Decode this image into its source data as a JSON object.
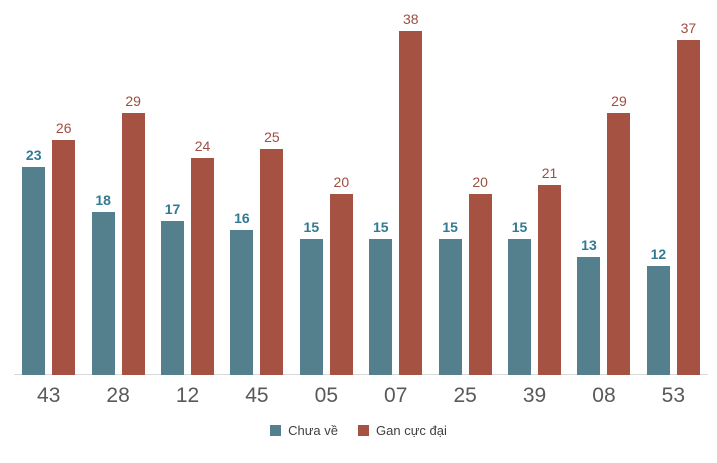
{
  "chart_data": {
    "type": "bar",
    "title": "",
    "xlabel": "",
    "ylabel": "",
    "categories": [
      "43",
      "28",
      "12",
      "45",
      "05",
      "07",
      "25",
      "39",
      "08",
      "53"
    ],
    "series": [
      {
        "name": "Chưa về",
        "color": "#54808D",
        "label_color": "#327A93",
        "values": [
          23,
          18,
          17,
          16,
          15,
          15,
          15,
          15,
          13,
          12
        ]
      },
      {
        "name": "Gan cực đại",
        "color": "#A55242",
        "label_color": "#9E4E3F",
        "values": [
          26,
          29,
          24,
          25,
          20,
          38,
          20,
          21,
          29,
          37
        ]
      }
    ],
    "ylim": [
      0,
      38
    ],
    "grid": false,
    "data_labels": true,
    "legend_position": "bottom",
    "axis_line_color": "#D9D9D9",
    "category_label_color": "#595959",
    "legend_text_color": "#404040"
  }
}
